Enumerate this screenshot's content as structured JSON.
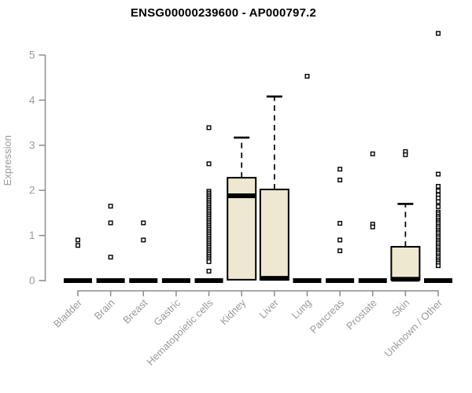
{
  "header": {
    "title": "ENSG00000239600 - AP000797.2"
  },
  "chart_data": {
    "type": "boxplot",
    "title": "ENSG00000239600 - AP000797.2",
    "xlabel": "",
    "ylabel": "Expression",
    "ylim": [
      0,
      5.5
    ],
    "yticks": [
      0,
      1,
      2,
      3,
      4,
      5
    ],
    "grid": false,
    "legend": "none",
    "box_fill_color": "#EEE8D0",
    "box_border_color": "#000000",
    "axis_color": "#8C8C8C",
    "tick_label_color": "#9a9a9a",
    "categories": [
      "Bladder",
      "Brain",
      "Breast",
      "Gastric",
      "Hematopoietic cells",
      "Kidney",
      "Liver",
      "Lung",
      "Pancreas",
      "Prostate",
      "Skin",
      "Unknown / Other"
    ],
    "series": [
      {
        "label": "Bladder",
        "q1": 0,
        "median": 0,
        "q3": 0,
        "whisker_low": 0,
        "whisker_high": 0,
        "outliers": [
          0.9,
          0.78
        ]
      },
      {
        "label": "Brain",
        "q1": 0,
        "median": 0,
        "q3": 0,
        "whisker_low": 0,
        "whisker_high": 0,
        "outliers": [
          1.65,
          1.28,
          0.52
        ]
      },
      {
        "label": "Breast",
        "q1": 0,
        "median": 0,
        "q3": 0,
        "whisker_low": 0,
        "whisker_high": 0,
        "outliers": [
          1.28,
          0.9
        ]
      },
      {
        "label": "Gastric",
        "q1": 0,
        "median": 0,
        "q3": 0,
        "whisker_low": 0,
        "whisker_high": 0,
        "outliers": []
      },
      {
        "label": "Hematopoietic cells",
        "q1": 0,
        "median": 0,
        "q3": 0,
        "whisker_low": 0,
        "whisker_high": 0,
        "outliers": [
          3.39,
          2.59,
          1.98,
          1.94,
          1.9,
          1.86,
          1.82,
          1.78,
          1.74,
          1.7,
          1.66,
          1.62,
          1.58,
          1.54,
          1.5,
          1.46,
          1.42,
          1.38,
          1.34,
          1.3,
          1.26,
          1.22,
          1.18,
          1.14,
          1.1,
          1.06,
          1.02,
          0.98,
          0.94,
          0.9,
          0.86,
          0.82,
          0.78,
          0.74,
          0.7,
          0.66,
          0.62,
          0.58,
          0.54,
          0.5,
          0.46,
          0.42,
          0.21
        ]
      },
      {
        "label": "Kidney",
        "q1": 0.02,
        "median": 1.88,
        "q3": 2.28,
        "whisker_low": 0,
        "whisker_high": 3.17,
        "outliers": []
      },
      {
        "label": "Liver",
        "q1": 0.02,
        "median": 0.05,
        "q3": 2.02,
        "whisker_low": 0,
        "whisker_high": 4.08,
        "outliers": []
      },
      {
        "label": "Lung",
        "q1": 0,
        "median": 0,
        "q3": 0,
        "whisker_low": 0,
        "whisker_high": 0,
        "outliers": [
          4.53
        ]
      },
      {
        "label": "Pancreas",
        "q1": 0,
        "median": 0,
        "q3": 0,
        "whisker_low": 0,
        "whisker_high": 0,
        "outliers": [
          2.47,
          2.23,
          1.27,
          0.9,
          0.66
        ]
      },
      {
        "label": "Prostate",
        "q1": 0,
        "median": 0,
        "q3": 0,
        "whisker_low": 0,
        "whisker_high": 0,
        "outliers": [
          2.81,
          1.25,
          1.19
        ]
      },
      {
        "label": "Skin",
        "q1": 0.02,
        "median": 0.03,
        "q3": 0.75,
        "whisker_low": 0,
        "whisker_high": 1.7,
        "outliers": [
          2.86,
          2.79
        ]
      },
      {
        "label": "Unknown / Other",
        "q1": 0,
        "median": 0,
        "q3": 0,
        "whisker_low": 0,
        "whisker_high": 0,
        "outliers": [
          5.48,
          2.36,
          2.09,
          1.99,
          1.9,
          1.83,
          1.75,
          1.64,
          1.52,
          1.48,
          1.43,
          1.39,
          1.34,
          1.3,
          1.26,
          1.21,
          1.17,
          1.12,
          1.08,
          1.04,
          0.99,
          0.95,
          0.9,
          0.86,
          0.82,
          0.77,
          0.73,
          0.68,
          0.64,
          0.6,
          0.55,
          0.51,
          0.46,
          0.42,
          0.38,
          0.33
        ]
      }
    ]
  }
}
